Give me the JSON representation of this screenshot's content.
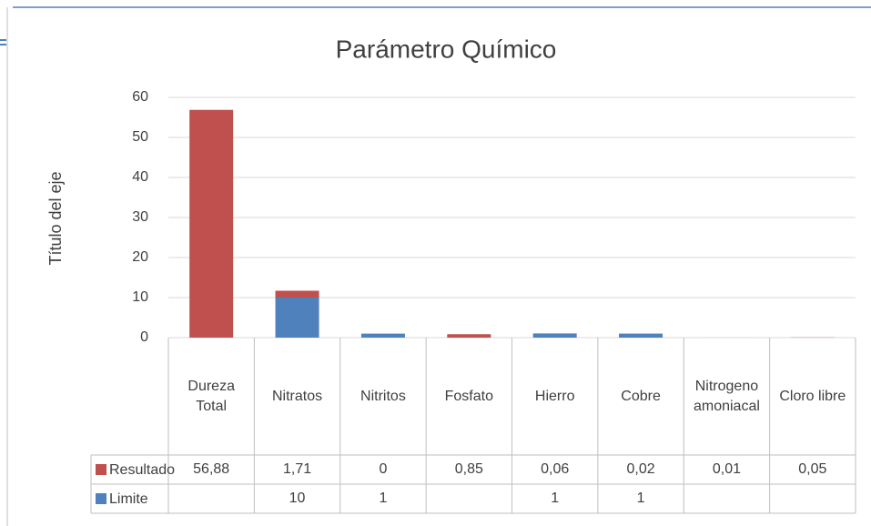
{
  "chart_data": {
    "type": "bar",
    "stacked": true,
    "title": "Parámetro Químico",
    "y_label": "Título del eje",
    "categories": [
      "Dureza Total",
      "Nitratos",
      "Nitritos",
      "Fosfato",
      "Hierro",
      "Cobre",
      "Nitrogeno amoniacal",
      "Cloro libre"
    ],
    "series": [
      {
        "name": "Resultado",
        "color": "#c0504d",
        "values": [
          56.88,
          1.71,
          0,
          0.85,
          0.06,
          0.02,
          0.01,
          0.05
        ],
        "value_labels": [
          "56,88",
          "1,71",
          "0",
          "0,85",
          "0,06",
          "0,02",
          "0,01",
          "0,05"
        ]
      },
      {
        "name": "Limite",
        "color": "#4f81bd",
        "values": [
          null,
          10,
          1,
          null,
          1,
          1,
          null,
          null
        ]
      }
    ],
    "ylim": [
      0,
      60
    ],
    "yticks": [
      0,
      10,
      20,
      30,
      40,
      50,
      60
    ],
    "grid": true,
    "data_table": true
  }
}
